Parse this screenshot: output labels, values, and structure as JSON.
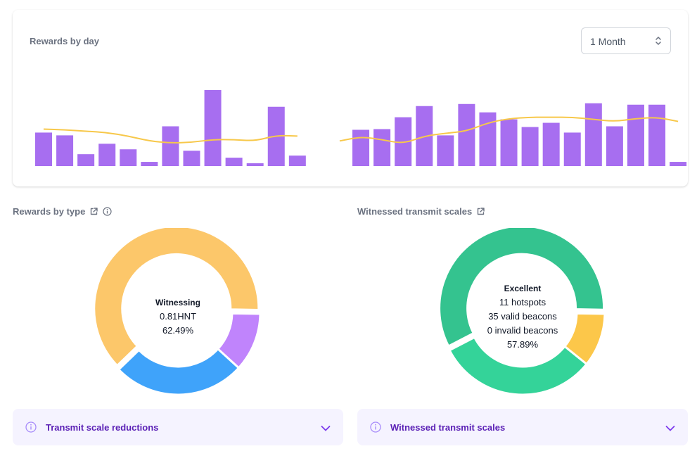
{
  "rewards_by_day": {
    "title": "Rewards by day",
    "period": {
      "value": "1 Month"
    },
    "colors": {
      "bar": "#a76ef0",
      "line": "#f7c84a"
    },
    "chart_data": {
      "type": "bar",
      "series": [
        {
          "values": [
            0.48,
            0.44,
            0.17,
            0.32,
            0.24,
            0.06,
            0.57,
            0.22,
            1.09,
            0.12,
            0.04,
            0.85,
            0.15,
            null,
            0.0,
            0.52,
            0.53,
            0.7,
            0.86,
            0.44,
            0.89,
            0.77,
            0.67,
            0.56,
            0.62,
            0.48,
            0.9,
            0.57,
            0.88,
            0.88,
            0.06
          ]
        },
        {
          "type": "line",
          "values": [
            0.53,
            0.52,
            0.5,
            0.48,
            0.43,
            0.36,
            0.33,
            0.34,
            0.38,
            0.38,
            0.36,
            0.44,
            0.43,
            null,
            0.36,
            0.42,
            0.38,
            0.32,
            0.43,
            0.47,
            0.5,
            0.62,
            0.68,
            0.7,
            0.7,
            0.7,
            0.67,
            0.64,
            0.68,
            0.7,
            0.64
          ]
        }
      ],
      "ylim": [
        0,
        1.15
      ]
    }
  },
  "rewards_by_type": {
    "title": "Rewards by type",
    "center": {
      "label": "Witnessing",
      "value": "0.81HNT",
      "percent": "62.49%"
    },
    "chart_data": {
      "type": "pie",
      "slices": [
        {
          "label": "Witnessing",
          "value": 62.49,
          "color": "#fcc76a"
        },
        {
          "value": 11.5,
          "color": "#c084fc"
        },
        {
          "value": 26.01,
          "color": "#3fa3fa"
        }
      ]
    }
  },
  "witnessed_transmit_scales": {
    "title": "Witnessed transmit scales",
    "center": {
      "label": "Excellent",
      "hotspots": "11 hotspots",
      "valid": "35 valid beacons",
      "invalid": "0 invalid beacons",
      "percent": "57.89%"
    },
    "chart_data": {
      "type": "pie",
      "slices": [
        {
          "label": "Excellent",
          "value": 57.89,
          "color": "#34c38f"
        },
        {
          "value": 10.53,
          "color": "#fcc74a"
        },
        {
          "value": 31.58,
          "color": "#34d399"
        }
      ]
    }
  },
  "accordions": {
    "transmit_scale_reductions": "Transmit scale reductions",
    "witnessed_transmit_scales": "Witnessed transmit scales"
  }
}
